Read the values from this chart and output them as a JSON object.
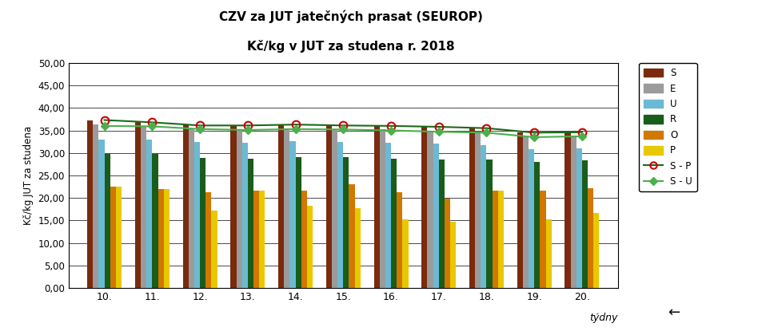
{
  "title_line1": "CZV za JUT jatečných prasat (SEUROP)",
  "title_line2": "Kč/kg v JUT za studena r. 2018",
  "xlabel": "týdny",
  "ylabel": "Kč/kg JUT za studena",
  "weeks": [
    "10.",
    "11.",
    "12.",
    "13.",
    "14.",
    "15.",
    "16.",
    "17.",
    "18.",
    "19.",
    "20."
  ],
  "ylim": [
    0,
    50
  ],
  "yticks": [
    0,
    5,
    10,
    15,
    20,
    25,
    30,
    35,
    40,
    45,
    50
  ],
  "ytick_labels": [
    "0,00",
    "5,00",
    "10,00",
    "15,00",
    "20,00",
    "25,00",
    "30,00",
    "35,00",
    "40,00",
    "45,00",
    "50,00"
  ],
  "S": [
    37.3,
    36.8,
    36.1,
    36.1,
    36.3,
    36.1,
    36.0,
    35.8,
    35.5,
    34.5,
    34.6
  ],
  "E": [
    36.3,
    36.0,
    35.5,
    35.3,
    35.4,
    35.3,
    35.2,
    34.8,
    34.7,
    33.7,
    33.8
  ],
  "U": [
    33.0,
    32.9,
    32.5,
    32.2,
    32.6,
    32.5,
    32.2,
    32.0,
    31.7,
    30.8,
    31.0
  ],
  "R": [
    29.7,
    29.7,
    28.9,
    28.8,
    29.0,
    29.0,
    28.8,
    28.5,
    28.5,
    28.0,
    28.3
  ],
  "O": [
    22.5,
    22.0,
    21.3,
    21.7,
    21.7,
    23.0,
    21.2,
    19.8,
    21.6,
    21.6,
    22.2
  ],
  "P": [
    22.5,
    22.0,
    17.2,
    21.7,
    18.3,
    17.8,
    15.3,
    14.8,
    21.6,
    15.3,
    16.6
  ],
  "SP": [
    37.3,
    36.8,
    36.1,
    36.1,
    36.3,
    36.1,
    36.0,
    35.8,
    35.5,
    34.5,
    34.6
  ],
  "SU": [
    36.0,
    35.9,
    35.3,
    35.1,
    35.3,
    35.2,
    35.0,
    34.7,
    34.5,
    33.5,
    33.7
  ],
  "colors": {
    "S": "#7B2A0E",
    "E": "#9B9B9B",
    "U": "#6BBAD4",
    "R": "#1A5C1A",
    "O": "#D07800",
    "P": "#E8C800"
  },
  "line_SP_color": "#1A6B1A",
  "line_SU_color": "#4BAF4B",
  "figsize": [
    9.54,
    4.15
  ],
  "dpi": 100
}
